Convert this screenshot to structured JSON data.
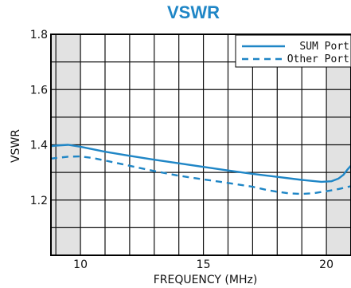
{
  "chart_data": {
    "type": "line",
    "title": "VSWR",
    "xlabel": "FREQUENCY (MHz)",
    "ylabel": "VSWR",
    "xlim": [
      8.8,
      21.0
    ],
    "ylim": [
      1.0,
      1.8
    ],
    "x_ticks": [
      10,
      15,
      20
    ],
    "y_ticks": [
      1.2,
      1.4,
      1.6,
      1.8
    ],
    "y_tick_labels": [
      "1.2",
      "1.4",
      "1.6",
      "1.8"
    ],
    "grid": true,
    "grid_x_step": 1,
    "grid_y_step": 0.1,
    "shaded_x_ranges": [
      [
        8.8,
        10.0
      ],
      [
        20.0,
        21.0
      ]
    ],
    "legend_position": "top-right",
    "colors": {
      "title": "#1f86c6",
      "series": "#1f86c6",
      "shade": "#e2e2e2",
      "grid": "#111111"
    },
    "series": [
      {
        "name": "SUM Port",
        "style": "solid",
        "x": [
          8.8,
          9.0,
          9.5,
          10.0,
          11.0,
          12.0,
          13.0,
          14.0,
          15.0,
          16.0,
          17.0,
          18.0,
          19.0,
          19.8,
          20.2,
          20.5,
          20.7,
          20.85,
          21.0
        ],
        "y": [
          1.395,
          1.397,
          1.4,
          1.393,
          1.375,
          1.36,
          1.346,
          1.333,
          1.32,
          1.307,
          1.295,
          1.284,
          1.273,
          1.266,
          1.268,
          1.278,
          1.292,
          1.31,
          1.325
        ]
      },
      {
        "name": "Other Port",
        "style": "dashed",
        "x": [
          8.8,
          9.0,
          9.5,
          10.0,
          10.5,
          11.0,
          12.0,
          13.0,
          14.0,
          15.0,
          16.0,
          17.0,
          17.5,
          18.0,
          18.5,
          19.0,
          19.5,
          20.0,
          20.5,
          21.0
        ],
        "y": [
          1.35,
          1.352,
          1.357,
          1.358,
          1.352,
          1.343,
          1.324,
          1.305,
          1.288,
          1.275,
          1.262,
          1.248,
          1.238,
          1.23,
          1.224,
          1.222,
          1.225,
          1.232,
          1.24,
          1.25
        ]
      }
    ]
  }
}
